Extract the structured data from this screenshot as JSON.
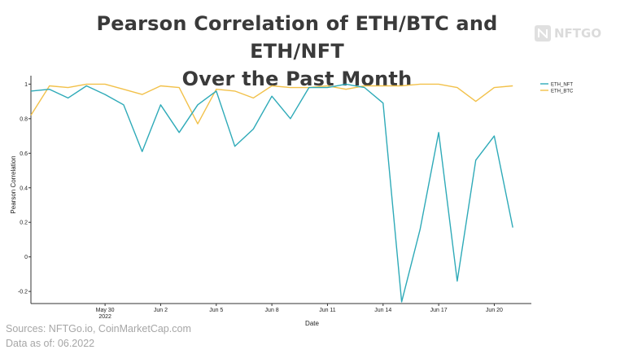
{
  "header": {
    "title_line1": "Pearson Correlation of ETH/BTC and ETH/NFT",
    "title_line2": "Over the Past Month"
  },
  "logo": {
    "text": "NFTGO",
    "icon": "nftgo-logo-icon"
  },
  "footer": {
    "sources": "Sources: NFTGo.io, CoinMarketCap.com",
    "data_as_of": "Data as of: 06.2022"
  },
  "colors": {
    "eth_nft": "#2eaab8",
    "eth_btc": "#f2c14a",
    "title": "#3a3a3a"
  },
  "chart_data": {
    "type": "line",
    "xlabel": "Date",
    "ylabel": "Pearson Correlation",
    "x_start": "2022-05-26",
    "x_end": "2022-06-22",
    "ylim": [
      -0.27,
      1.03
    ],
    "yticks": [
      -0.2,
      0,
      0.2,
      0.4,
      0.6,
      0.8,
      1
    ],
    "ytick_labels": [
      "-0.2",
      "0",
      "0.2",
      "0.4",
      "0.6",
      "0.8",
      "1"
    ],
    "xticks": [
      {
        "date": "2022-05-30",
        "label": "May 30",
        "sublabel": "2022"
      },
      {
        "date": "2022-06-02",
        "label": "Jun 2",
        "sublabel": ""
      },
      {
        "date": "2022-06-05",
        "label": "Jun 5",
        "sublabel": ""
      },
      {
        "date": "2022-06-08",
        "label": "Jun 8",
        "sublabel": ""
      },
      {
        "date": "2022-06-11",
        "label": "Jun 11",
        "sublabel": ""
      },
      {
        "date": "2022-06-14",
        "label": "Jun 14",
        "sublabel": ""
      },
      {
        "date": "2022-06-17",
        "label": "Jun 17",
        "sublabel": ""
      },
      {
        "date": "2022-06-20",
        "label": "Jun 20",
        "sublabel": ""
      }
    ],
    "grid": false,
    "legend_position": "top-right",
    "series": [
      {
        "name": "ETH_NFT",
        "color": "#2eaab8",
        "points": [
          [
            "2022-05-26",
            0.96
          ],
          [
            "2022-05-27",
            0.97
          ],
          [
            "2022-05-28",
            0.92
          ],
          [
            "2022-05-29",
            0.99
          ],
          [
            "2022-05-30",
            0.94
          ],
          [
            "2022-05-31",
            0.88
          ],
          [
            "2022-06-01",
            0.61
          ],
          [
            "2022-06-02",
            0.88
          ],
          [
            "2022-06-03",
            0.72
          ],
          [
            "2022-06-04",
            0.88
          ],
          [
            "2022-06-05",
            0.96
          ],
          [
            "2022-06-06",
            0.64
          ],
          [
            "2022-06-07",
            0.74
          ],
          [
            "2022-06-08",
            0.93
          ],
          [
            "2022-06-09",
            0.8
          ],
          [
            "2022-06-10",
            0.98
          ],
          [
            "2022-06-11",
            0.98
          ],
          [
            "2022-06-12",
            1.0
          ],
          [
            "2022-06-13",
            0.98
          ],
          [
            "2022-06-14",
            0.89
          ],
          [
            "2022-06-15",
            -0.26
          ],
          [
            "2022-06-16",
            0.16
          ],
          [
            "2022-06-17",
            0.72
          ],
          [
            "2022-06-18",
            -0.14
          ],
          [
            "2022-06-19",
            0.56
          ],
          [
            "2022-06-20",
            0.7
          ],
          [
            "2022-06-21",
            0.17
          ]
        ]
      },
      {
        "name": "ETH_BTC",
        "color": "#f2c14a",
        "points": [
          [
            "2022-05-26",
            0.82
          ],
          [
            "2022-05-27",
            0.99
          ],
          [
            "2022-05-28",
            0.98
          ],
          [
            "2022-05-29",
            1.0
          ],
          [
            "2022-05-30",
            1.0
          ],
          [
            "2022-05-31",
            0.97
          ],
          [
            "2022-06-01",
            0.94
          ],
          [
            "2022-06-02",
            0.99
          ],
          [
            "2022-06-03",
            0.98
          ],
          [
            "2022-06-04",
            0.77
          ],
          [
            "2022-06-05",
            0.97
          ],
          [
            "2022-06-06",
            0.96
          ],
          [
            "2022-06-07",
            0.92
          ],
          [
            "2022-06-08",
            0.99
          ],
          [
            "2022-06-09",
            0.98
          ],
          [
            "2022-06-10",
            0.98
          ],
          [
            "2022-06-11",
            0.99
          ],
          [
            "2022-06-12",
            0.97
          ],
          [
            "2022-06-13",
            0.99
          ],
          [
            "2022-06-14",
            0.99
          ],
          [
            "2022-06-15",
            0.99
          ],
          [
            "2022-06-16",
            1.0
          ],
          [
            "2022-06-17",
            1.0
          ],
          [
            "2022-06-18",
            0.98
          ],
          [
            "2022-06-19",
            0.9
          ],
          [
            "2022-06-20",
            0.98
          ],
          [
            "2022-06-21",
            0.99
          ]
        ]
      }
    ]
  }
}
